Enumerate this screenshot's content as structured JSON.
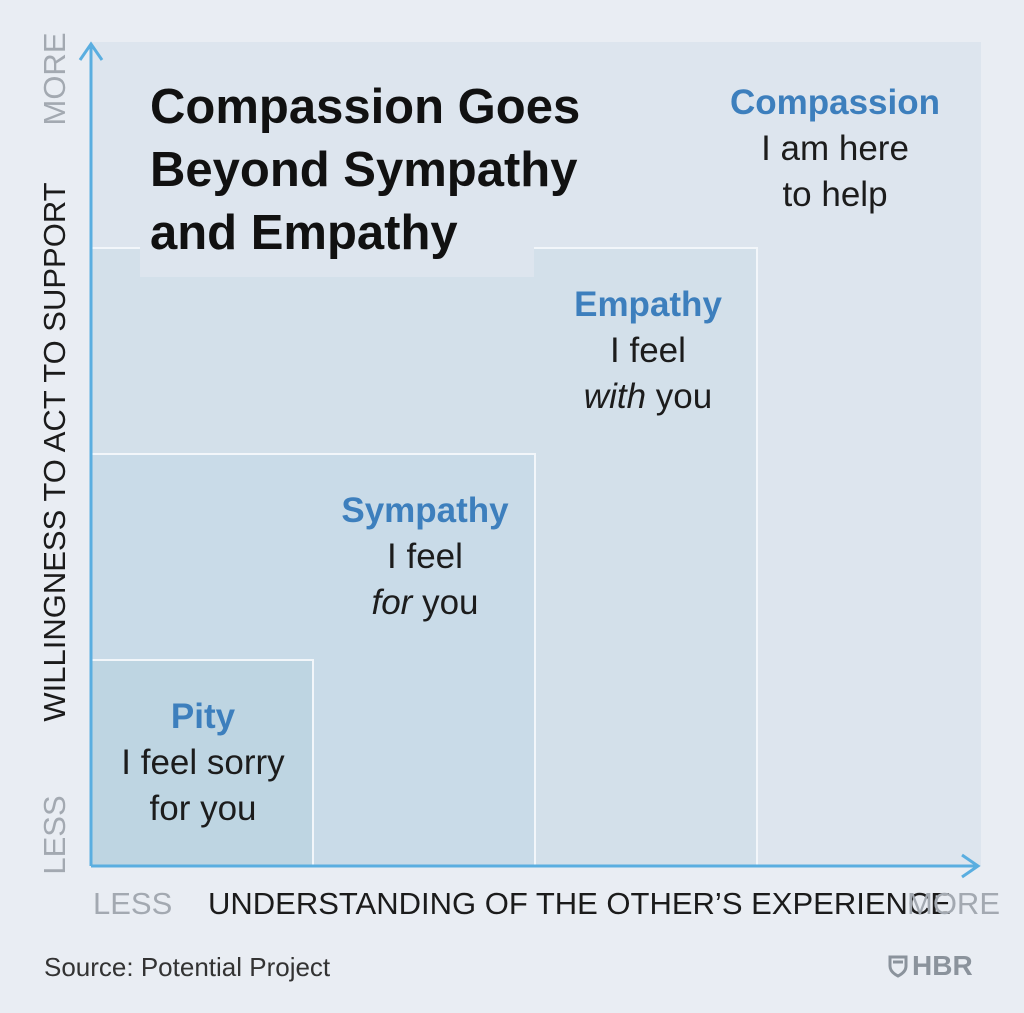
{
  "title": {
    "line1": "Compassion Goes",
    "line2": "Beyond Sympathy",
    "line3": "and Empathy"
  },
  "levels": {
    "compassion": {
      "name": "Compassion",
      "line1": "I am here",
      "line2": "to help"
    },
    "empathy": {
      "name": "Empathy",
      "line1": "I feel",
      "line2_em": "with",
      "line2_rest": " you"
    },
    "sympathy": {
      "name": "Sympathy",
      "line1": "I feel",
      "line2_em": "for",
      "line2_rest": " you"
    },
    "pity": {
      "name": "Pity",
      "line1": "I feel sorry",
      "line2": "for you"
    }
  },
  "axes": {
    "x": {
      "label": "UNDERSTANDING OF THE OTHER’S EXPERIENCE",
      "low": "LESS",
      "high": "MORE"
    },
    "y": {
      "label": "WILLINGNESS TO ACT TO SUPPORT",
      "low": "LESS",
      "high": "MORE"
    }
  },
  "footer": {
    "source": "Source: Potential Project",
    "brand": "HBR"
  },
  "colors": {
    "background": "#e9edf3",
    "accent": "#3d7fbd",
    "axis": "#5aaee0"
  }
}
